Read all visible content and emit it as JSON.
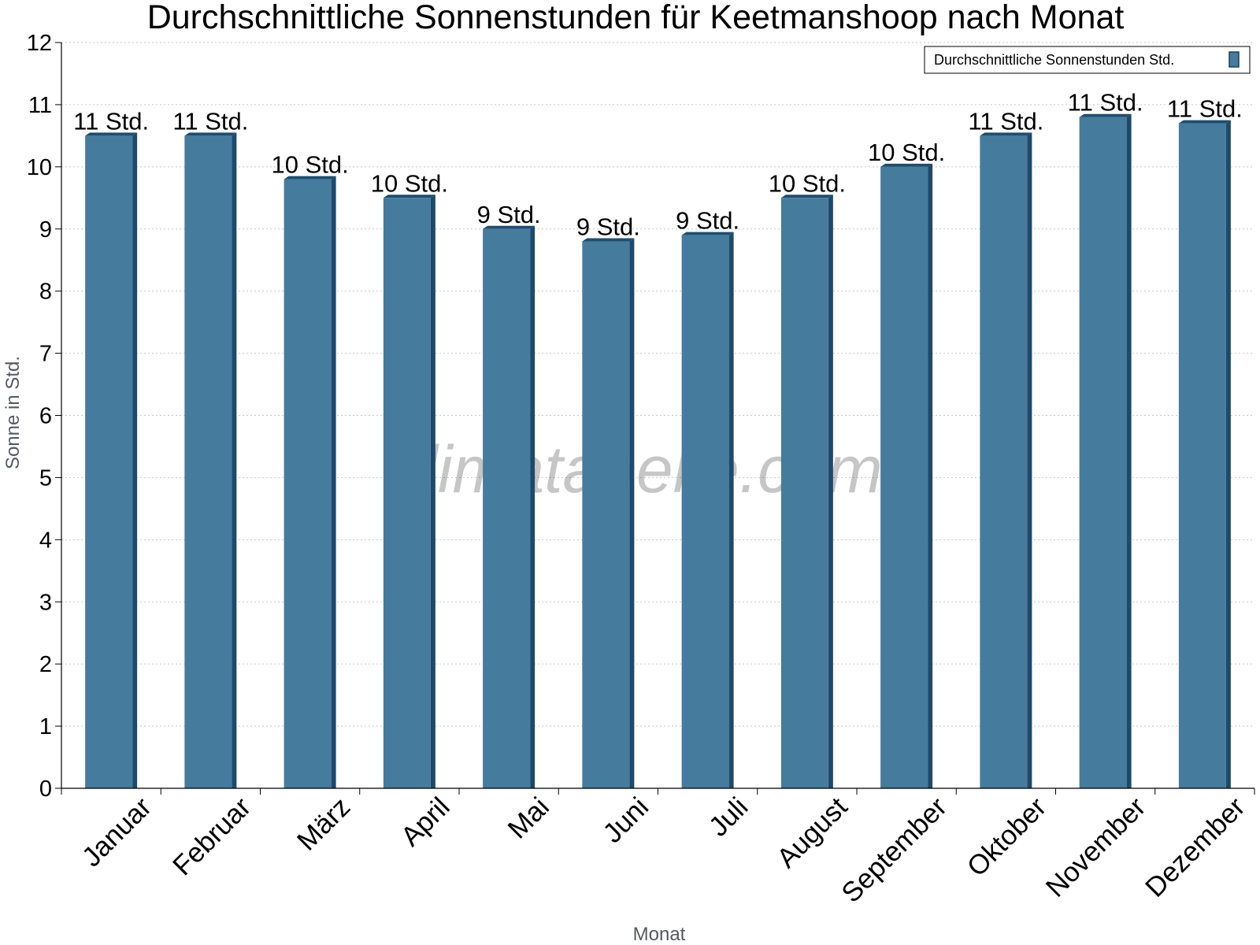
{
  "chart_data": {
    "type": "bar",
    "title": "Durchschnittliche Sonnenstunden für Keetmanshoop nach Monat",
    "xlabel": "Monat",
    "ylabel": "Sonne in Std.",
    "ylim": [
      0,
      12
    ],
    "yticks": [
      0,
      1,
      2,
      3,
      4,
      5,
      6,
      7,
      8,
      9,
      10,
      11,
      12
    ],
    "grid": true,
    "legend_position": "top-right",
    "watermark": "klimatabelle.com",
    "categories": [
      "Januar",
      "Februar",
      "März",
      "April",
      "Mai",
      "Juni",
      "Juli",
      "August",
      "September",
      "Oktober",
      "November",
      "Dezember"
    ],
    "series": [
      {
        "name": "Durchschnittliche Sonnenstunden Std.",
        "color": "#457b9d",
        "values": [
          10.5,
          10.5,
          9.8,
          9.5,
          9.0,
          8.8,
          8.9,
          9.5,
          10.0,
          10.5,
          10.8,
          10.7
        ],
        "labels": [
          "11 Std.",
          "11 Std.",
          "10 Std.",
          "10 Std.",
          "9 Std.",
          "9 Std.",
          "9 Std.",
          "10 Std.",
          "10 Std.",
          "11 Std.",
          "11 Std.",
          "11 Std."
        ]
      }
    ]
  }
}
